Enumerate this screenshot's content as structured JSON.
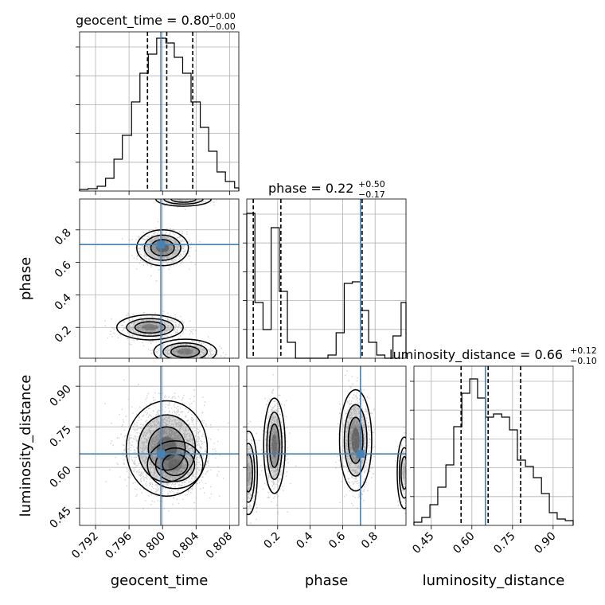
{
  "chart_data": {
    "type": "corner",
    "parameters": [
      "geocent_time",
      "phase",
      "luminosity_distance"
    ],
    "truth": {
      "geocent_time": 0.7998,
      "phase": 0.71,
      "luminosity_distance": 0.65
    },
    "titles": [
      {
        "param": "geocent_time",
        "name": "geocent_time",
        "median": "0.80",
        "plus": "+0.00",
        "minus": "−0.00"
      },
      {
        "param": "phase",
        "name": "phase",
        "median": "0.22",
        "plus": "+0.50",
        "minus": "−0.17"
      },
      {
        "param": "luminosity_distance",
        "name": "luminosity_distance",
        "median": "0.66",
        "plus": "+0.12",
        "minus": "−0.10"
      }
    ],
    "axes": {
      "geocent_time": {
        "range": [
          0.7901,
          0.8091
        ],
        "ticks": [
          0.792,
          0.796,
          0.8,
          0.804,
          0.808
        ],
        "tick_labels": [
          "0.792",
          "0.796",
          "0.800",
          "0.804",
          "0.808"
        ]
      },
      "phase": {
        "range": [
          0.01,
          0.99
        ],
        "ticks": [
          0.2,
          0.4,
          0.6,
          0.8
        ],
        "tick_labels": [
          "0.2",
          "0.4",
          "0.6",
          "0.8"
        ]
      },
      "luminosity_distance": {
        "range": [
          0.386,
          0.974
        ],
        "ticks": [
          0.45,
          0.6,
          0.75,
          0.9
        ],
        "tick_labels": [
          "0.45",
          "0.60",
          "0.75",
          "0.90"
        ]
      }
    },
    "hist_geocent_time": {
      "edges": [
        0.7901,
        0.7911,
        0.7922,
        0.7932,
        0.7942,
        0.7952,
        0.7963,
        0.7973,
        0.7983,
        0.7993,
        0.8004,
        0.8014,
        0.8024,
        0.8034,
        0.8045,
        0.8055,
        0.8065,
        0.8075,
        0.8086,
        0.8091
      ],
      "counts": [
        0.01,
        0.015,
        0.03,
        0.08,
        0.2,
        0.35,
        0.56,
        0.74,
        0.86,
        0.96,
        0.93,
        0.84,
        0.74,
        0.56,
        0.4,
        0.25,
        0.12,
        0.06,
        0.02
      ],
      "quantiles": [
        0.7982,
        0.8005,
        0.8036
      ]
    },
    "hist_phase": {
      "edges": [
        0.01,
        0.06,
        0.11,
        0.16,
        0.21,
        0.26,
        0.31,
        0.36,
        0.41,
        0.46,
        0.51,
        0.56,
        0.61,
        0.66,
        0.71,
        0.76,
        0.81,
        0.86,
        0.91,
        0.96,
        0.99
      ],
      "counts": [
        0.91,
        0.35,
        0.18,
        0.82,
        0.42,
        0.1,
        0.0,
        0.0,
        0.0,
        0.0,
        0.02,
        0.16,
        0.47,
        0.48,
        0.3,
        0.1,
        0.02,
        0.0,
        0.14,
        0.35
      ],
      "quantiles": [
        0.05,
        0.22,
        0.72
      ]
    },
    "hist_luminosity_distance": {
      "edges": [
        0.386,
        0.415,
        0.445,
        0.474,
        0.504,
        0.533,
        0.563,
        0.592,
        0.621,
        0.651,
        0.68,
        0.71,
        0.739,
        0.768,
        0.798,
        0.827,
        0.857,
        0.886,
        0.915,
        0.945,
        0.974
      ],
      "counts": [
        0.02,
        0.05,
        0.13,
        0.24,
        0.38,
        0.62,
        0.83,
        0.92,
        0.8,
        0.68,
        0.7,
        0.68,
        0.6,
        0.41,
        0.37,
        0.3,
        0.2,
        0.08,
        0.04,
        0.03
      ],
      "quantiles": [
        0.56,
        0.66,
        0.78
      ]
    },
    "samples_2d": [
      {
        "x": "geocent_time",
        "y": "phase",
        "modes": [
          {
            "cx": 0.8,
            "cy": 0.69,
            "sx": 0.0014,
            "sy": 0.05,
            "n": 950
          },
          {
            "cx": 0.7985,
            "cy": 0.2,
            "sx": 0.0018,
            "sy": 0.035,
            "n": 650
          },
          {
            "cx": 0.8027,
            "cy": 0.05,
            "sx": 0.0017,
            "sy": 0.035,
            "n": 700
          },
          {
            "cx": 0.8025,
            "cy": 0.99,
            "sx": 0.0015,
            "sy": 0.02,
            "n": 200
          }
        ]
      },
      {
        "x": "phase",
        "y": "luminosity_distance",
        "modes": [
          {
            "cx": 0.18,
            "cy": 0.68,
            "sx": 0.03,
            "sy": 0.08,
            "n": 800
          },
          {
            "cx": 0.68,
            "cy": 0.7,
            "sx": 0.045,
            "sy": 0.085,
            "n": 950
          },
          {
            "cx": 0.02,
            "cy": 0.58,
            "sx": 0.025,
            "sy": 0.07,
            "n": 400
          },
          {
            "cx": 0.98,
            "cy": 0.58,
            "sx": 0.02,
            "sy": 0.06,
            "n": 250
          }
        ]
      },
      {
        "x": "geocent_time",
        "y": "luminosity_distance",
        "modes": [
          {
            "cx": 0.8005,
            "cy": 0.67,
            "sx": 0.0022,
            "sy": 0.08,
            "n": 2200
          },
          {
            "cx": 0.8015,
            "cy": 0.61,
            "sx": 0.0015,
            "sy": 0.04,
            "n": 500
          }
        ]
      }
    ]
  }
}
